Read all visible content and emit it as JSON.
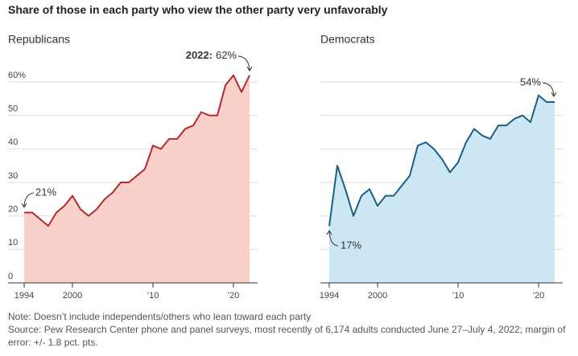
{
  "title": "Share of those in each party who view the other party very unfavorably",
  "notes": [
    "Note: Doesn’t include independents/others who lean toward each party",
    "Source: Pew Research Center phone and panel surveys, most recently of 6,174 adults conducted June 27–July 4, 2022; margin of error: +/- 1.8 pct. pts."
  ],
  "chart_data": [
    {
      "type": "area",
      "subtitle": "Republicans",
      "color": "#b5282e",
      "fill": "#f9d0ca",
      "x": [
        1994,
        1995,
        1997,
        1998,
        1999,
        2000,
        2001,
        2002,
        2003,
        2004,
        2005,
        2006,
        2007,
        2008,
        2009,
        2010,
        2011,
        2012,
        2013,
        2014,
        2015,
        2016,
        2017,
        2018,
        2019,
        2020,
        2021,
        2022
      ],
      "values": [
        21,
        21,
        17,
        21,
        23,
        26,
        22,
        20,
        22,
        25,
        27,
        30,
        30,
        32,
        34,
        41,
        40,
        43,
        43,
        46,
        47,
        51,
        50,
        50,
        59,
        62,
        57,
        62
      ],
      "xlim": [
        1994,
        2023
      ],
      "ylim": [
        0,
        60
      ],
      "xticks": [
        1994,
        2000,
        {
          "value": 2010,
          "label": "’10"
        },
        {
          "value": 2020,
          "label": "’20"
        }
      ],
      "yticks": [
        0,
        10,
        20,
        30,
        40,
        50,
        {
          "value": 60,
          "label": "60%"
        }
      ],
      "ytick_labels": true,
      "grid": true,
      "annotations": [
        {
          "text": "21%"
        },
        {
          "label": "2022:",
          "text": "62%"
        }
      ]
    },
    {
      "type": "area",
      "subtitle": "Democrats",
      "color": "#1a5e86",
      "fill": "#cce6f4",
      "x": [
        1994,
        1995,
        1996,
        1997,
        1998,
        1999,
        2000,
        2001,
        2002,
        2003,
        2004,
        2005,
        2006,
        2007,
        2008,
        2009,
        2010,
        2011,
        2012,
        2013,
        2014,
        2015,
        2016,
        2017,
        2018,
        2019,
        2020,
        2021,
        2022
      ],
      "values": [
        17,
        35,
        28,
        20,
        26,
        28,
        23,
        26,
        26,
        29,
        32,
        41,
        42,
        40,
        37,
        33,
        36,
        42,
        46,
        44,
        43,
        47,
        47,
        49,
        50,
        48,
        56,
        54,
        54
      ],
      "xlim": [
        1994,
        2023
      ],
      "ylim": [
        0,
        60
      ],
      "xticks": [
        1994,
        2000,
        {
          "value": 2010,
          "label": "’10"
        },
        {
          "value": 2020,
          "label": "’20"
        }
      ],
      "yticks": [
        0,
        10,
        20,
        30,
        40,
        50,
        60
      ],
      "ytick_labels": false,
      "grid": true,
      "annotations": [
        {
          "text": "17%"
        },
        {
          "text": "54%"
        }
      ]
    }
  ]
}
